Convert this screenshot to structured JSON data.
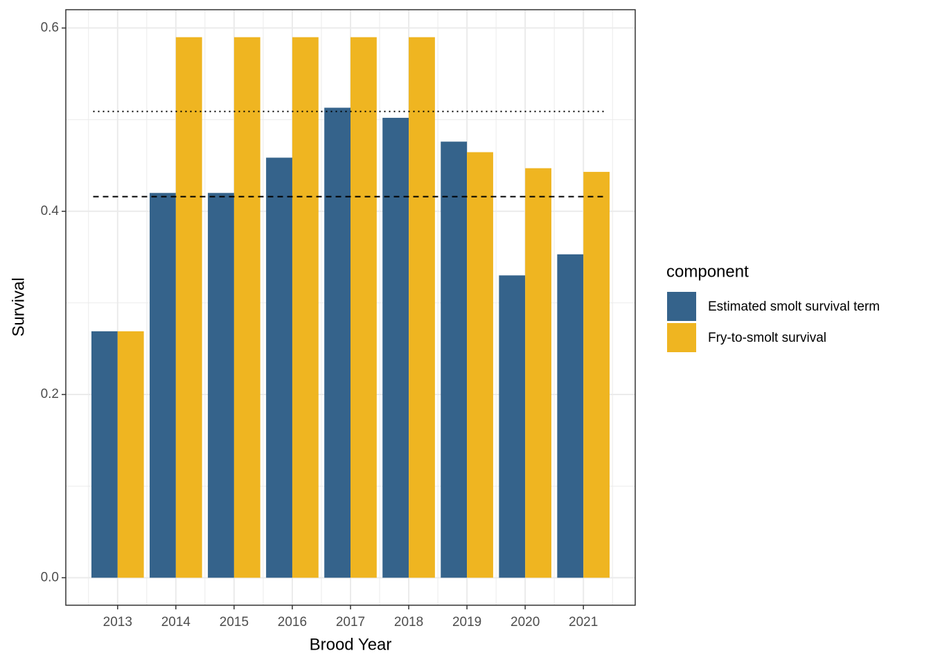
{
  "chart_data": {
    "type": "bar",
    "x_label": "Brood Year",
    "y_label": "Survival",
    "categories": [
      "2013",
      "2014",
      "2015",
      "2016",
      "2017",
      "2018",
      "2019",
      "2020",
      "2021"
    ],
    "legend_title": "component",
    "series": [
      {
        "name": "Estimated smolt survival term",
        "color": "#35638b",
        "values": [
          0.269,
          0.42,
          0.42,
          0.4585,
          0.513,
          0.502,
          0.476,
          0.33,
          0.353
        ]
      },
      {
        "name": "Fry-to-smolt survival",
        "color": "#efb521",
        "values": [
          0.269,
          0.59,
          0.59,
          0.59,
          0.59,
          0.59,
          0.4645,
          0.447,
          0.443
        ]
      }
    ],
    "reference_lines": [
      {
        "value": 0.509,
        "style": "dotted"
      },
      {
        "value": 0.416,
        "style": "dashed"
      }
    ],
    "ylim": [
      -0.03,
      0.62
    ],
    "yticks": [
      {
        "value": 0,
        "label": "0.0"
      },
      0.2,
      0.4,
      0.6
    ],
    "grid": true,
    "legend": "right"
  }
}
